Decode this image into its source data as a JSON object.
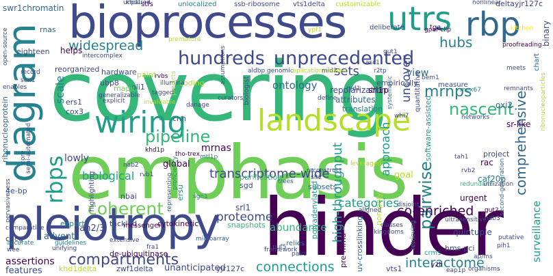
{
  "colors": {
    "background": "#ffffff",
    "purple": "#440154",
    "indigo": "#3e4a89",
    "blue": "#31688e",
    "teal": "#26828e",
    "green": "#1f9e89",
    "mint": "#35b779",
    "lime": "#6ece58",
    "yellowgreen": "#b5de2b",
    "yellow": "#fde725"
  },
  "words": [
    {
      "text": "covering"
    },
    {
      "text": "emphasis"
    },
    {
      "text": "hinder"
    },
    {
      "text": "bioprocesses"
    },
    {
      "text": "pleiotropy"
    },
    {
      "text": "diagram"
    },
    {
      "text": "utrs"
    },
    {
      "text": "rbp"
    },
    {
      "text": "landscape"
    },
    {
      "text": "wiring"
    },
    {
      "text": "rbps"
    },
    {
      "text": "hundreds"
    },
    {
      "text": "unprecedented"
    },
    {
      "text": "widespread"
    },
    {
      "text": "coherent"
    },
    {
      "text": "compartments"
    },
    {
      "text": "pipeline"
    },
    {
      "text": "nascent"
    },
    {
      "text": "comprehensive"
    },
    {
      "text": "connections"
    },
    {
      "text": "interactome"
    },
    {
      "text": "high-throughput"
    },
    {
      "text": "transcriptome-wide"
    },
    {
      "text": "pairwise"
    },
    {
      "text": "surveillance"
    },
    {
      "text": "co-enriched"
    },
    {
      "text": "categories"
    },
    {
      "text": "mrnps"
    },
    {
      "text": "hubs"
    },
    {
      "text": "approach"
    },
    {
      "text": "proteome"
    },
    {
      "text": "biological"
    },
    {
      "text": "uncover"
    },
    {
      "text": "sets"
    },
    {
      "text": "ontology"
    },
    {
      "text": "assertions"
    },
    {
      "text": "features"
    },
    {
      "text": "unanticipated"
    },
    {
      "text": "abundance"
    },
    {
      "text": "scale"
    },
    {
      "text": "view"
    },
    {
      "text": "global"
    },
    {
      "text": "mrnas"
    },
    {
      "text": "lowly"
    },
    {
      "text": "goal"
    },
    {
      "text": "advent"
    },
    {
      "text": "pan2/3"
    },
    {
      "text": "srl1"
    },
    {
      "text": "helps"
    },
    {
      "text": "repolarization"
    },
    {
      "text": "attributes"
    },
    {
      "text": "srl1p"
    },
    {
      "text": "sr-like"
    },
    {
      "text": "hardware"
    },
    {
      "text": "cnn"
    },
    {
      "text": "translation"
    },
    {
      "text": "ribonucleoprotein"
    },
    {
      "text": "swr1chromatin"
    },
    {
      "text": "cytokinetic"
    },
    {
      "text": "tackled"
    },
    {
      "text": "expert"
    },
    {
      "text": "snapshots"
    },
    {
      "text": "crms"
    },
    {
      "text": "quintuple"
    },
    {
      "text": "urgent"
    },
    {
      "text": "subsets"
    },
    {
      "text": "purification"
    },
    {
      "text": "sgd"
    },
    {
      "text": "nbai"
    },
    {
      "text": "messenger"
    },
    {
      "text": "caf20p"
    },
    {
      "text": "rac"
    },
    {
      "text": "project"
    },
    {
      "text": "oxi2"
    },
    {
      "text": "reorganized"
    },
    {
      "text": "eighteen"
    },
    {
      "text": "rnas"
    },
    {
      "text": "ubp8"
    },
    {
      "text": "cox3"
    },
    {
      "text": "ers1"
    },
    {
      "text": "4e-bp"
    },
    {
      "text": "cgcg"
    },
    {
      "text": "deltayjr127c"
    },
    {
      "text": "binary"
    },
    {
      "text": "chart"
    },
    {
      "text": "empirically"
    },
    {
      "text": "measure"
    },
    {
      "text": "quantitative"
    },
    {
      "text": "software-assisted"
    },
    {
      "text": "coding"
    },
    {
      "text": "oli1"
    },
    {
      "text": "maps"
    },
    {
      "text": "paint"
    },
    {
      "text": "biologist"
    },
    {
      "text": "tga"
    },
    {
      "text": "deliberate"
    },
    {
      "text": "unlocalized"
    },
    {
      "text": "ssb-ribosome"
    },
    {
      "text": "vts1delta"
    },
    {
      "text": "customizable"
    },
    {
      "text": "stfs"
    },
    {
      "text": "khd1"
    },
    {
      "text": "nonlinear"
    },
    {
      "text": "kitchen"
    },
    {
      "text": "premature"
    },
    {
      "text": "intercomplex"
    },
    {
      "text": "gpar-clip"
    },
    {
      "text": "illumina"
    },
    {
      "text": "tagged"
    },
    {
      "text": "rvbs"
    },
    {
      "text": "mex67"
    },
    {
      "text": "meets"
    },
    {
      "text": "remnants"
    },
    {
      "text": "proofreading"
    },
    {
      "text": "networks"
    },
    {
      "text": "ribonucleoparticles"
    },
    {
      "text": "mtl1p"
    },
    {
      "text": "tho-trex"
    },
    {
      "text": "khd1p"
    },
    {
      "text": "nab2"
    },
    {
      "text": "nrd1"
    },
    {
      "text": "define"
    },
    {
      "text": "highlighting"
    },
    {
      "text": "representing"
    },
    {
      "text": "de-ubiquitinase"
    },
    {
      "text": "ersu"
    },
    {
      "text": "trees"
    },
    {
      "text": "slt2"
    },
    {
      "text": "pre-mrna"
    },
    {
      "text": "polyadenylated"
    },
    {
      "text": "non-poly"
    },
    {
      "text": "microarray"
    },
    {
      "text": "framework"
    },
    {
      "text": "relies"
    },
    {
      "text": "pairs"
    },
    {
      "text": "uv-crosslinking"
    },
    {
      "text": "vts1"
    },
    {
      "text": "retrieving"
    },
    {
      "text": "hms-pci"
    },
    {
      "text": "y2h"
    },
    {
      "text": "khd1delta"
    },
    {
      "text": "zwf1delta"
    },
    {
      "text": "yjr127c"
    },
    {
      "text": "puf5"
    },
    {
      "text": "organisms"
    },
    {
      "text": "eap1p"
    },
    {
      "text": "kingdoms"
    },
    {
      "text": "classes"
    },
    {
      "text": "gut2"
    },
    {
      "text": "nab3"
    },
    {
      "text": "ultrasensitive"
    },
    {
      "text": "second-generation"
    },
    {
      "text": "putative"
    },
    {
      "text": "pih1"
    },
    {
      "text": "ap/ms"
    },
    {
      "text": "redundant"
    },
    {
      "text": "rvb2"
    },
    {
      "text": "tah1"
    },
    {
      "text": "proficiency"
    },
    {
      "text": "unifying"
    },
    {
      "text": "guidelines"
    },
    {
      "text": "extensive"
    },
    {
      "text": "comparative"
    },
    {
      "text": "pervasiveness"
    },
    {
      "text": "accurate"
    },
    {
      "text": "wee"
    },
    {
      "text": "core"
    },
    {
      "text": "semi-automated"
    },
    {
      "text": "open-source"
    },
    {
      "text": "record"
    },
    {
      "text": "sen1"
    },
    {
      "text": "enables"
    },
    {
      "text": "explicit"
    },
    {
      "text": "generalizable"
    },
    {
      "text": "invaluable"
    },
    {
      "text": "danage"
    },
    {
      "text": "curators"
    },
    {
      "text": "predicts"
    },
    {
      "text": "assumptions"
    },
    {
      "text": "aldbp"
    },
    {
      "text": "mid2"
    },
    {
      "text": "genomic"
    },
    {
      "text": "replication-related"
    },
    {
      "text": "gut1"
    },
    {
      "text": "asc1"
    },
    {
      "text": "r2tp"
    },
    {
      "text": "systematic"
    },
    {
      "text": "whi7"
    },
    {
      "text": "bem1"
    },
    {
      "text": "utilization"
    },
    {
      "text": "reconstruct"
    },
    {
      "text": "leveraged"
    },
    {
      "text": "rvb1"
    },
    {
      "text": "unpaired"
    },
    {
      "text": "ypf1"
    },
    {
      "text": "sgn1"
    },
    {
      "text": "aligned"
    },
    {
      "text": "disjoint"
    },
    {
      "text": "fra1"
    }
  ]
}
